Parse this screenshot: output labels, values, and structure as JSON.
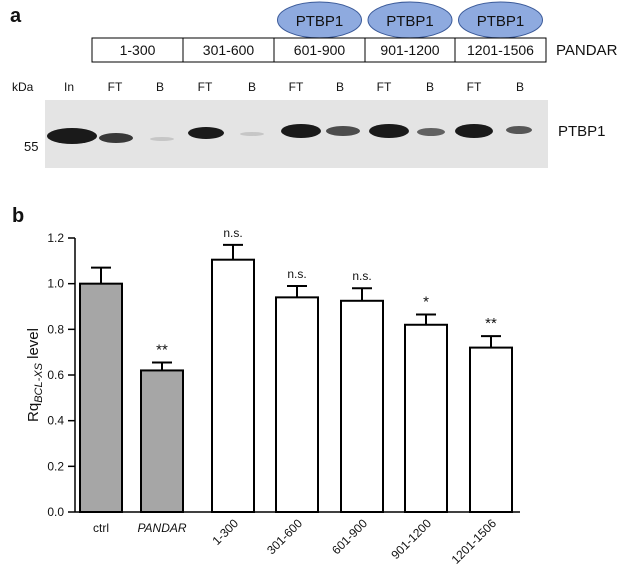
{
  "panel_a": {
    "label": "a",
    "bound_proteins": [
      "PTBP1",
      "PTBP1",
      "PTBP1"
    ],
    "segments": [
      "1-300",
      "301-600",
      "601-900",
      "901-1200",
      "1201-1506"
    ],
    "construct": "PANDAR",
    "kda_label": "kDa",
    "lanes": [
      "In",
      "FT",
      "B",
      "FT",
      "B",
      "FT",
      "B",
      "FT",
      "B",
      "FT",
      "B"
    ],
    "marker": "55",
    "blot_label": "PTBP1"
  },
  "panel_b_label": "b",
  "chart_data": {
    "type": "bar",
    "ylabel": {
      "main": "Rq",
      "sub": "BCL-XS",
      "suffix": " level"
    },
    "categories": [
      "ctrl",
      "PANDAR",
      "1-300",
      "301-600",
      "601-900",
      "901-1200",
      "1201-1506"
    ],
    "values": [
      1.0,
      0.62,
      1.105,
      0.94,
      0.925,
      0.82,
      0.72
    ],
    "errors": [
      0.07,
      0.035,
      0.065,
      0.05,
      0.055,
      0.045,
      0.05
    ],
    "colors": [
      "#a6a6a6",
      "#a6a6a6",
      "#ffffff",
      "#ffffff",
      "#ffffff",
      "#ffffff",
      "#ffffff"
    ],
    "annotations": [
      null,
      "**",
      "n.s.",
      "n.s.",
      "n.s.",
      "*",
      "**"
    ],
    "ylim": [
      0,
      1.2
    ],
    "yticks": [
      {
        "value": 0,
        "label": "0.0"
      },
      0.2,
      0.4,
      0.6,
      0.8,
      {
        "value": 1,
        "label": "1.0"
      },
      1.2
    ]
  }
}
